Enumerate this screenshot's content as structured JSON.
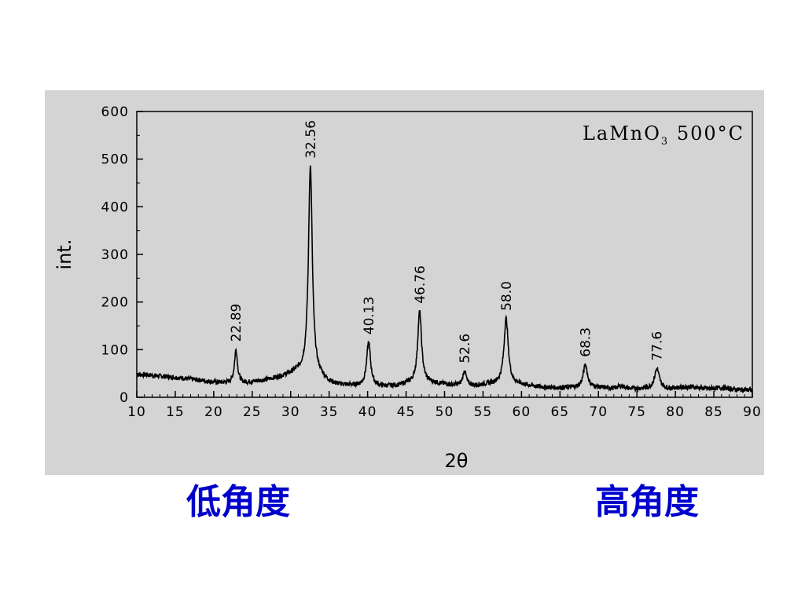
{
  "chart_data": {
    "type": "line",
    "title": "LaMnO",
    "title_subscript": "3",
    "title_suffix": " 500°C",
    "xlabel": "2θ",
    "ylabel": "int.",
    "xlim": [
      10,
      90
    ],
    "ylim": [
      0,
      600
    ],
    "xticks": [
      10,
      15,
      20,
      25,
      30,
      35,
      40,
      45,
      50,
      55,
      60,
      65,
      70,
      75,
      80,
      85,
      90
    ],
    "yticks": [
      0,
      100,
      200,
      300,
      400,
      500,
      600
    ],
    "grid": false,
    "line_color": "#000000",
    "background_color": "#d4d4d4",
    "peaks": [
      {
        "x": 22.89,
        "y": 100,
        "label": "22.89"
      },
      {
        "x": 32.56,
        "y": 485,
        "label": "32.56"
      },
      {
        "x": 40.13,
        "y": 115,
        "label": "40.13"
      },
      {
        "x": 46.76,
        "y": 180,
        "label": "46.76"
      },
      {
        "x": 52.6,
        "y": 55,
        "label": "52.6"
      },
      {
        "x": 58.0,
        "y": 165,
        "label": "58.0"
      },
      {
        "x": 68.3,
        "y": 68,
        "label": "68.3"
      },
      {
        "x": 77.6,
        "y": 60,
        "label": "77.6"
      }
    ],
    "baseline": [
      [
        10,
        48
      ],
      [
        12,
        46
      ],
      [
        14,
        43
      ],
      [
        16,
        40
      ],
      [
        18,
        36
      ],
      [
        20,
        32
      ],
      [
        21.5,
        30
      ],
      [
        24,
        30
      ],
      [
        26,
        34
      ],
      [
        28,
        40
      ],
      [
        30,
        48
      ],
      [
        31,
        52
      ],
      [
        34,
        40
      ],
      [
        35,
        30
      ],
      [
        36,
        26
      ],
      [
        38,
        24
      ],
      [
        42,
        22
      ],
      [
        44,
        24
      ],
      [
        45,
        28
      ],
      [
        48,
        30
      ],
      [
        50,
        27
      ],
      [
        51,
        25
      ],
      [
        54,
        24
      ],
      [
        56,
        28
      ],
      [
        60,
        26
      ],
      [
        62,
        22
      ],
      [
        64,
        20
      ],
      [
        66,
        20
      ],
      [
        70,
        20
      ],
      [
        72,
        19
      ],
      [
        73,
        24
      ],
      [
        74,
        18
      ],
      [
        79,
        18
      ],
      [
        82,
        22
      ],
      [
        84,
        18
      ],
      [
        86,
        20
      ],
      [
        88,
        16
      ],
      [
        90,
        15
      ]
    ],
    "peak_widths": [
      0.35,
      0.45,
      0.45,
      0.45,
      0.4,
      0.5,
      0.5,
      0.55
    ]
  },
  "captions": {
    "low_angle": "低角度",
    "high_angle": "高角度"
  }
}
